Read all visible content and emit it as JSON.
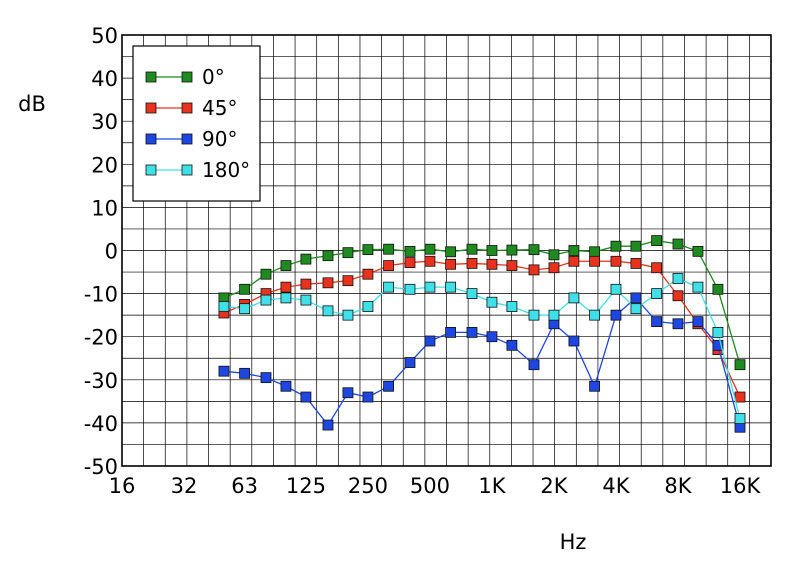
{
  "chart_data": {
    "type": "line",
    "title": "",
    "xlabel": "Hz",
    "ylabel": "dB",
    "x_scale": "log2",
    "xlim": [
      16,
      22627
    ],
    "ylim": [
      -50,
      50
    ],
    "grid": true,
    "legend_position": "top-left",
    "x_ticks": [
      {
        "value": 16,
        "label": "16"
      },
      {
        "value": 32,
        "label": "32"
      },
      {
        "value": 63,
        "label": "63"
      },
      {
        "value": 125,
        "label": "125"
      },
      {
        "value": 250,
        "label": "250"
      },
      {
        "value": 500,
        "label": "500"
      },
      {
        "value": 1000,
        "label": "1K"
      },
      {
        "value": 2000,
        "label": "2K"
      },
      {
        "value": 4000,
        "label": "4K"
      },
      {
        "value": 8000,
        "label": "8K"
      },
      {
        "value": 16000,
        "label": "16K"
      }
    ],
    "y_ticks": [
      50,
      40,
      30,
      20,
      10,
      0,
      -10,
      -20,
      -30,
      -40,
      -50
    ],
    "x": [
      50,
      63,
      80,
      100,
      125,
      160,
      200,
      250,
      315,
      400,
      500,
      630,
      800,
      1000,
      1250,
      1600,
      2000,
      2500,
      3150,
      4000,
      5000,
      6300,
      8000,
      10000,
      12500,
      16000
    ],
    "series": [
      {
        "name": "0°",
        "color": "#1f8a1f",
        "values": [
          -11,
          -9,
          -5.5,
          -3.5,
          -2,
          -1.2,
          -0.5,
          0.2,
          0.3,
          -0.2,
          0.3,
          -0.3,
          0.3,
          0,
          0.1,
          0.2,
          -1,
          0,
          -0.3,
          1,
          1,
          2.3,
          1.5,
          -0.2,
          -9,
          -26.5
        ]
      },
      {
        "name": "45°",
        "color": "#e8321e",
        "values": [
          -14.5,
          -12.5,
          -10,
          -8.5,
          -7.8,
          -7.5,
          -7,
          -5.5,
          -3.5,
          -2.8,
          -2.5,
          -3.2,
          -3,
          -3.2,
          -3.5,
          -4.5,
          -4,
          -2.5,
          -2.5,
          -2.5,
          -3,
          -4,
          -10.5,
          -17,
          -23,
          -34
        ]
      },
      {
        "name": "90°",
        "color": "#1e46e0",
        "values": [
          -28,
          -28.5,
          -29.5,
          -31.5,
          -34,
          -40.5,
          -33,
          -34,
          -31.5,
          -26,
          -21,
          -19,
          -19,
          -20,
          -22,
          -26.5,
          -17,
          -21,
          -31.5,
          -15,
          -11,
          -16.5,
          -17,
          -16.5,
          -22,
          -41
        ]
      },
      {
        "name": "180°",
        "color": "#3fe0e8",
        "values": [
          -13,
          -13.5,
          -11.5,
          -11,
          -11.5,
          -14,
          -15,
          -13,
          -8.5,
          -9,
          -8.5,
          -8.5,
          -10,
          -12,
          -13,
          -15,
          -15,
          -11,
          -15,
          -9,
          -13.5,
          -10,
          -6.5,
          -8.5,
          -19,
          -39
        ]
      }
    ]
  }
}
